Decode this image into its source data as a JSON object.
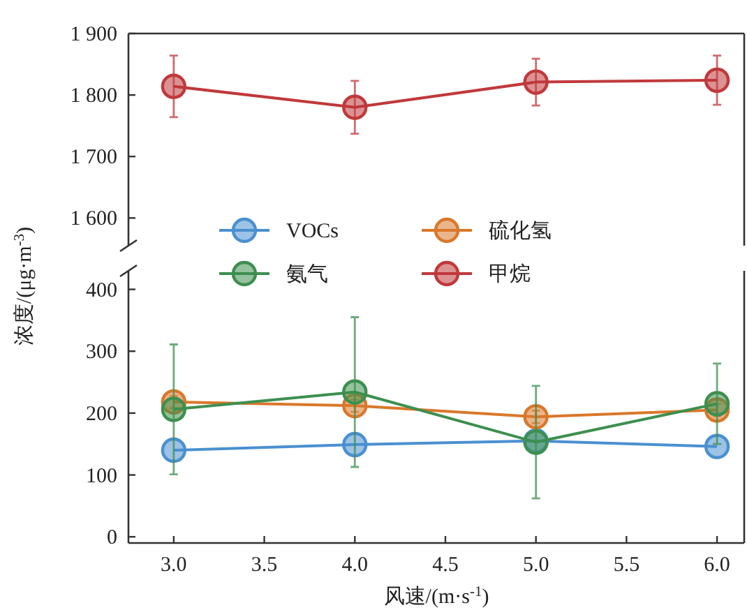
{
  "chart_data": [
    {
      "type": "line",
      "xlim": [
        2.75,
        6.15
      ],
      "ylim": [
        1555,
        1900
      ],
      "yticks": [
        {
          "value": 1600,
          "label": "1 600"
        },
        {
          "value": 1700,
          "label": "1 700"
        },
        {
          "value": 1800,
          "label": "1 800"
        },
        {
          "value": 1900,
          "label": "1 900"
        }
      ],
      "tick_labels": "y",
      "marker": "circle",
      "x": [
        3.0,
        4.0,
        5.0,
        6.0
      ],
      "series": [
        {
          "name": "甲烷",
          "color": "#c0393b",
          "values": [
            1814,
            1780,
            1821,
            1824
          ],
          "errors": [
            50,
            43,
            38,
            40
          ]
        }
      ]
    },
    {
      "type": "line",
      "xlabel": "风速/(m·s$^{-1}$)",
      "ylabel": "浓度/(μg·m$^{-3}$)",
      "xlim": [
        2.75,
        6.15
      ],
      "ylim": [
        -10,
        430
      ],
      "xticks": [
        {
          "value": 3,
          "label": "3.0"
        },
        {
          "value": 3.5,
          "label": "3.5"
        },
        {
          "value": 4,
          "label": "4.0"
        },
        {
          "value": 4.5,
          "label": "4.5"
        },
        {
          "value": 5,
          "label": "5.0"
        },
        {
          "value": 5.5,
          "label": "5.5"
        },
        {
          "value": 6,
          "label": "6.0"
        }
      ],
      "yticks": [
        0,
        100,
        200,
        300,
        400
      ],
      "marker": "circle",
      "legend": "center",
      "x": [
        3.0,
        4.0,
        5.0,
        6.0
      ],
      "series": [
        {
          "name": "VOCs",
          "color": "#4a90d0",
          "values": [
            140,
            149,
            155,
            146
          ]
        },
        {
          "name": "硫化氢",
          "color": "#d9782b",
          "values": [
            218,
            212,
            194,
            205
          ],
          "errors": [
            10,
            10,
            10,
            10
          ]
        },
        {
          "name": "氨气",
          "color": "#3d8f4f",
          "values": [
            206,
            234,
            153,
            215
          ],
          "errors": [
            105,
            121,
            91,
            65
          ]
        }
      ]
    }
  ]
}
